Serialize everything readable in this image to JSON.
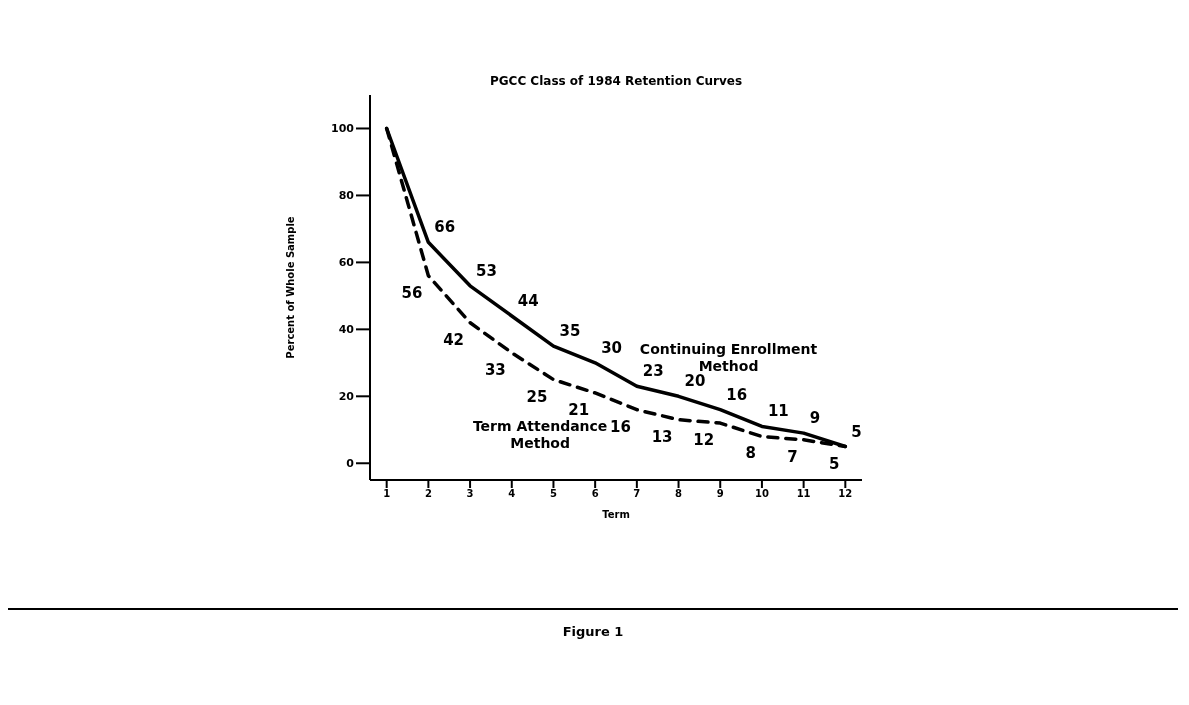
{
  "chart_data": {
    "type": "line",
    "title": "PGCC Class of 1984 Retention Curves",
    "xlabel": "Term",
    "ylabel": "Percent of Whole Sample",
    "x": [
      1,
      2,
      3,
      4,
      5,
      6,
      7,
      8,
      9,
      10,
      11,
      12
    ],
    "series": [
      {
        "name": "Continuing Enrollment Method",
        "color": "#000000",
        "line_style": "solid",
        "values": [
          100,
          66,
          53,
          44,
          35,
          30,
          23,
          20,
          16,
          11,
          9,
          5
        ],
        "value_labels": [
          null,
          "66",
          "53",
          "44",
          "35",
          "30",
          "23",
          "20",
          "16",
          "11",
          "9",
          "5"
        ]
      },
      {
        "name": "Term Attendance Method",
        "color": "#000000",
        "line_style": "dashed",
        "values": [
          100,
          56,
          42,
          33,
          25,
          21,
          16,
          13,
          12,
          8,
          7,
          5
        ],
        "value_labels": [
          null,
          "56",
          "42",
          "33",
          "25",
          "21",
          "16",
          "13",
          "12",
          "8",
          "7",
          "5"
        ]
      }
    ],
    "xlim": [
      0.6,
      12.4
    ],
    "xticks": [
      1,
      2,
      3,
      4,
      5,
      6,
      7,
      8,
      9,
      10,
      11,
      12
    ],
    "ylim": [
      -5,
      110
    ],
    "yticks": [
      0,
      20,
      40,
      60,
      80,
      100
    ],
    "marker": "none",
    "annotations": [
      "Figure 1"
    ]
  }
}
